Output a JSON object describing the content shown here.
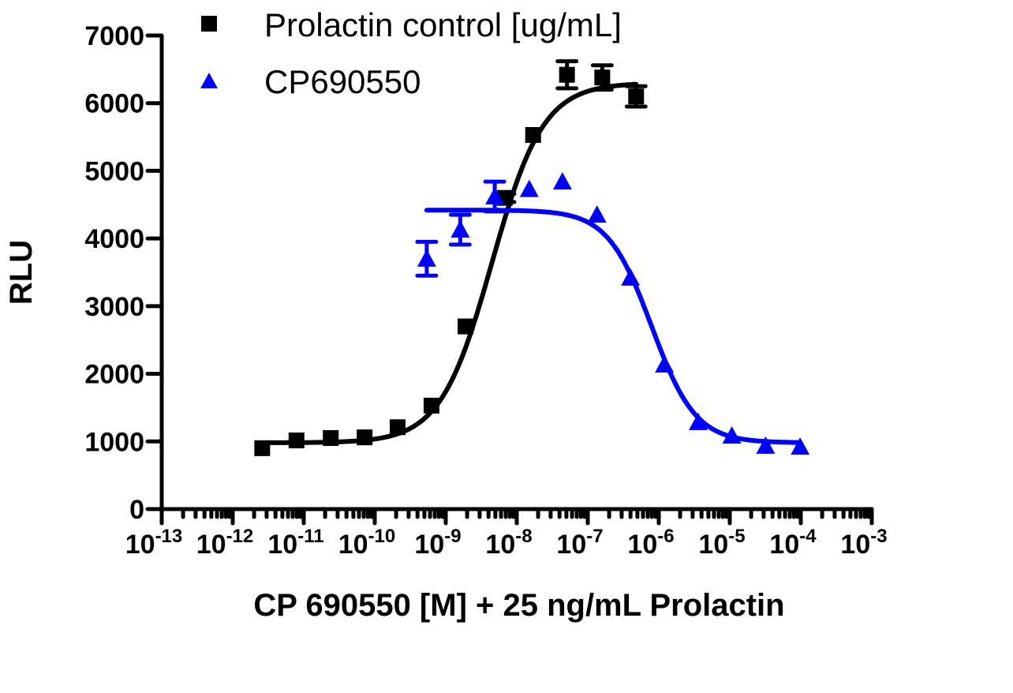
{
  "chart_data": {
    "type": "scatter",
    "xlabel": "CP 690550 [M] + 25 ng/mL Prolactin",
    "ylabel": "RLU",
    "x_scale": "log",
    "xlim": [
      1e-13,
      0.001
    ],
    "ylim": [
      0,
      7000
    ],
    "x_tick_exponents": [
      "-13",
      "-12",
      "-11",
      "-10",
      "-9",
      "-8",
      "-7",
      "-6",
      "-5",
      "-4",
      "-3"
    ],
    "y_ticks": [
      "0",
      "1000",
      "2000",
      "3000",
      "4000",
      "5000",
      "6000",
      "7000"
    ],
    "grid": false,
    "legend_position": "top",
    "series": [
      {
        "name": "Prolactin control [ug/mL]",
        "color": "#000000",
        "marker": "square",
        "x": [
          2.6e-12,
          7.9e-12,
          2.4e-11,
          7.2e-11,
          2.1e-10,
          6.3e-10,
          1.9e-09,
          6.8e-09,
          1.7e-08,
          5.1e-08,
          1.6e-07,
          4.8e-07
        ],
        "y": [
          900,
          1015,
          1050,
          1060,
          1210,
          1530,
          2700,
          4600,
          5530,
          6420,
          6380,
          6100
        ],
        "err": [
          0,
          0,
          0,
          0,
          0,
          0,
          0,
          60,
          0,
          200,
          180,
          150
        ],
        "fit": {
          "bottom": 980,
          "top": 6300,
          "log_ec50": -8.35,
          "hill": 1.2
        }
      },
      {
        "name": "CP690550",
        "color": "#0000ff",
        "marker": "triangle",
        "x": [
          5.4e-10,
          1.6e-09,
          4.9e-09,
          1.5e-08,
          4.4e-08,
          1.35e-07,
          4e-07,
          1.2e-06,
          3.6e-06,
          1.07e-05,
          3.2e-05,
          9.8e-05
        ],
        "y": [
          3700,
          4130,
          4620,
          4730,
          4840,
          4350,
          3420,
          2135,
          1285,
          1085,
          935,
          920
        ],
        "err": [
          250,
          220,
          220,
          0,
          0,
          0,
          0,
          0,
          0,
          0,
          0,
          0
        ],
        "fit": {
          "bottom": 980,
          "top": 4420,
          "log_ec50": -6.1,
          "hill": -1.4
        }
      }
    ]
  }
}
